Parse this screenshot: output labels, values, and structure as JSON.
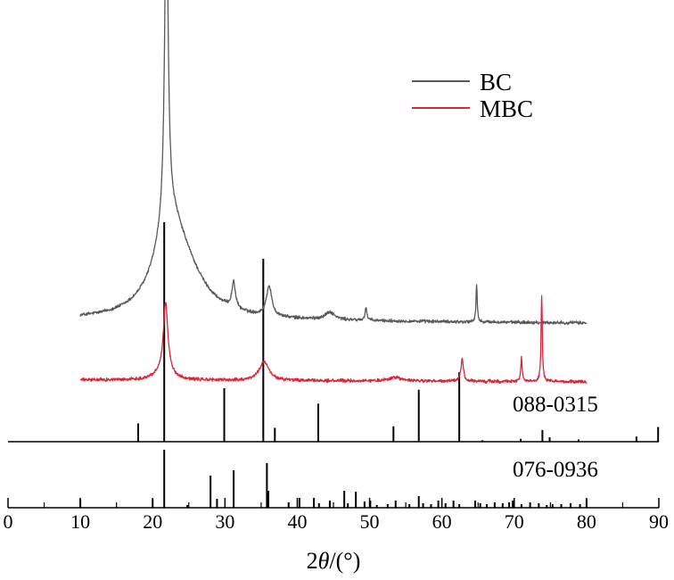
{
  "chart_data": {
    "type": "line",
    "xlabel_prefix": "2",
    "xlabel_theta": "θ",
    "xlabel_suffix": "/(°)",
    "xlim": [
      0,
      90
    ],
    "x_ticks": [
      0,
      10,
      20,
      30,
      40,
      50,
      60,
      70,
      80,
      90
    ],
    "grid": false,
    "legend_position": "top-right",
    "series": [
      {
        "name": "BC",
        "color": "#595959",
        "x_range": [
          10,
          80
        ],
        "baseline_start": 0.41,
        "baseline_end": 0.33,
        "noise": 0.035,
        "peaks": [
          {
            "x": 21.9,
            "height": 9.0,
            "width": 0.28
          },
          {
            "x": 22.3,
            "height": 2.2,
            "width": 2.5
          },
          {
            "x": 24.5,
            "height": 0.9,
            "width": 3.5
          },
          {
            "x": 31.2,
            "height": 0.7,
            "width": 0.3
          },
          {
            "x": 36.1,
            "height": 0.8,
            "width": 0.45
          },
          {
            "x": 44.5,
            "height": 0.2,
            "width": 0.8
          },
          {
            "x": 49.5,
            "height": 0.35,
            "width": 0.15
          },
          {
            "x": 64.8,
            "height": 1.0,
            "width": 0.1
          }
        ]
      },
      {
        "name": "MBC",
        "color": "#d9263a",
        "x_range": [
          10,
          80
        ],
        "baseline_start": 0.1,
        "baseline_end": 0.05,
        "noise": 0.035,
        "peaks": [
          {
            "x": 21.8,
            "height": 1.8,
            "width": 0.35
          },
          {
            "x": 21.6,
            "height": 0.3,
            "width": 1.2
          },
          {
            "x": 35.4,
            "height": 0.5,
            "width": 0.8
          },
          {
            "x": 53.5,
            "height": 0.1,
            "width": 1.0
          },
          {
            "x": 62.8,
            "height": 0.6,
            "width": 0.2
          },
          {
            "x": 71.0,
            "height": 0.7,
            "width": 0.1
          },
          {
            "x": 73.8,
            "height": 2.3,
            "width": 0.1
          }
        ]
      }
    ],
    "reference_patterns": [
      {
        "name": "088-0315",
        "lines": [
          {
            "x": 18.0,
            "h": 0.25
          },
          {
            "x": 21.6,
            "h": 3.0
          },
          {
            "x": 29.9,
            "h": 0.73
          },
          {
            "x": 35.3,
            "h": 2.5
          },
          {
            "x": 36.9,
            "h": 0.19
          },
          {
            "x": 42.9,
            "h": 0.52
          },
          {
            "x": 53.3,
            "h": 0.21
          },
          {
            "x": 56.8,
            "h": 0.71
          },
          {
            "x": 62.4,
            "h": 0.95
          },
          {
            "x": 65.6,
            "h": 0.02
          },
          {
            "x": 70.9,
            "h": 0.04
          },
          {
            "x": 73.9,
            "h": 0.16
          },
          {
            "x": 74.9,
            "h": 0.06
          },
          {
            "x": 78.9,
            "h": 0.03
          },
          {
            "x": 86.9,
            "h": 0.07
          },
          {
            "x": 89.9,
            "h": 0.2
          }
        ]
      },
      {
        "name": "076-0936",
        "lines": [
          {
            "x": 10.0,
            "h": 0.1
          },
          {
            "x": 20.0,
            "h": 0.1
          },
          {
            "x": 21.6,
            "h": 0.65
          },
          {
            "x": 24.8,
            "h": 0.03
          },
          {
            "x": 28.0,
            "h": 0.36
          },
          {
            "x": 28.9,
            "h": 0.1
          },
          {
            "x": 31.2,
            "h": 0.42
          },
          {
            "x": 35.8,
            "h": 0.5
          },
          {
            "x": 36.0,
            "h": 0.19
          },
          {
            "x": 38.8,
            "h": 0.06
          },
          {
            "x": 40.3,
            "h": 0.11
          },
          {
            "x": 42.3,
            "h": 0.11
          },
          {
            "x": 43.0,
            "h": 0.05
          },
          {
            "x": 44.5,
            "h": 0.08
          },
          {
            "x": 46.5,
            "h": 0.19
          },
          {
            "x": 47.0,
            "h": 0.05
          },
          {
            "x": 48.1,
            "h": 0.18
          },
          {
            "x": 49.3,
            "h": 0.07
          },
          {
            "x": 50.1,
            "h": 0.08
          },
          {
            "x": 51.0,
            "h": 0.03
          },
          {
            "x": 52.5,
            "h": 0.04
          },
          {
            "x": 53.6,
            "h": 0.08
          },
          {
            "x": 55.5,
            "h": 0.04
          },
          {
            "x": 56.8,
            "h": 0.13
          },
          {
            "x": 57.4,
            "h": 0.05
          },
          {
            "x": 58.5,
            "h": 0.04
          },
          {
            "x": 59.5,
            "h": 0.08
          },
          {
            "x": 60.5,
            "h": 0.05
          },
          {
            "x": 61.6,
            "h": 0.08
          },
          {
            "x": 62.4,
            "h": 0.04
          },
          {
            "x": 64.6,
            "h": 0.08
          },
          {
            "x": 65.3,
            "h": 0.05
          },
          {
            "x": 66.2,
            "h": 0.04
          },
          {
            "x": 67.3,
            "h": 0.06
          },
          {
            "x": 68.4,
            "h": 0.05
          },
          {
            "x": 69.3,
            "h": 0.06
          },
          {
            "x": 69.8,
            "h": 0.08
          },
          {
            "x": 71.0,
            "h": 0.04
          },
          {
            "x": 72.2,
            "h": 0.06
          },
          {
            "x": 73.4,
            "h": 0.05
          },
          {
            "x": 74.5,
            "h": 0.03
          },
          {
            "x": 75.3,
            "h": 0.04
          },
          {
            "x": 76.5,
            "h": 0.04
          },
          {
            "x": 77.8,
            "h": 0.05
          },
          {
            "x": 79.1,
            "h": 0.04
          },
          {
            "x": 80.0,
            "h": 0.1
          }
        ]
      }
    ]
  }
}
